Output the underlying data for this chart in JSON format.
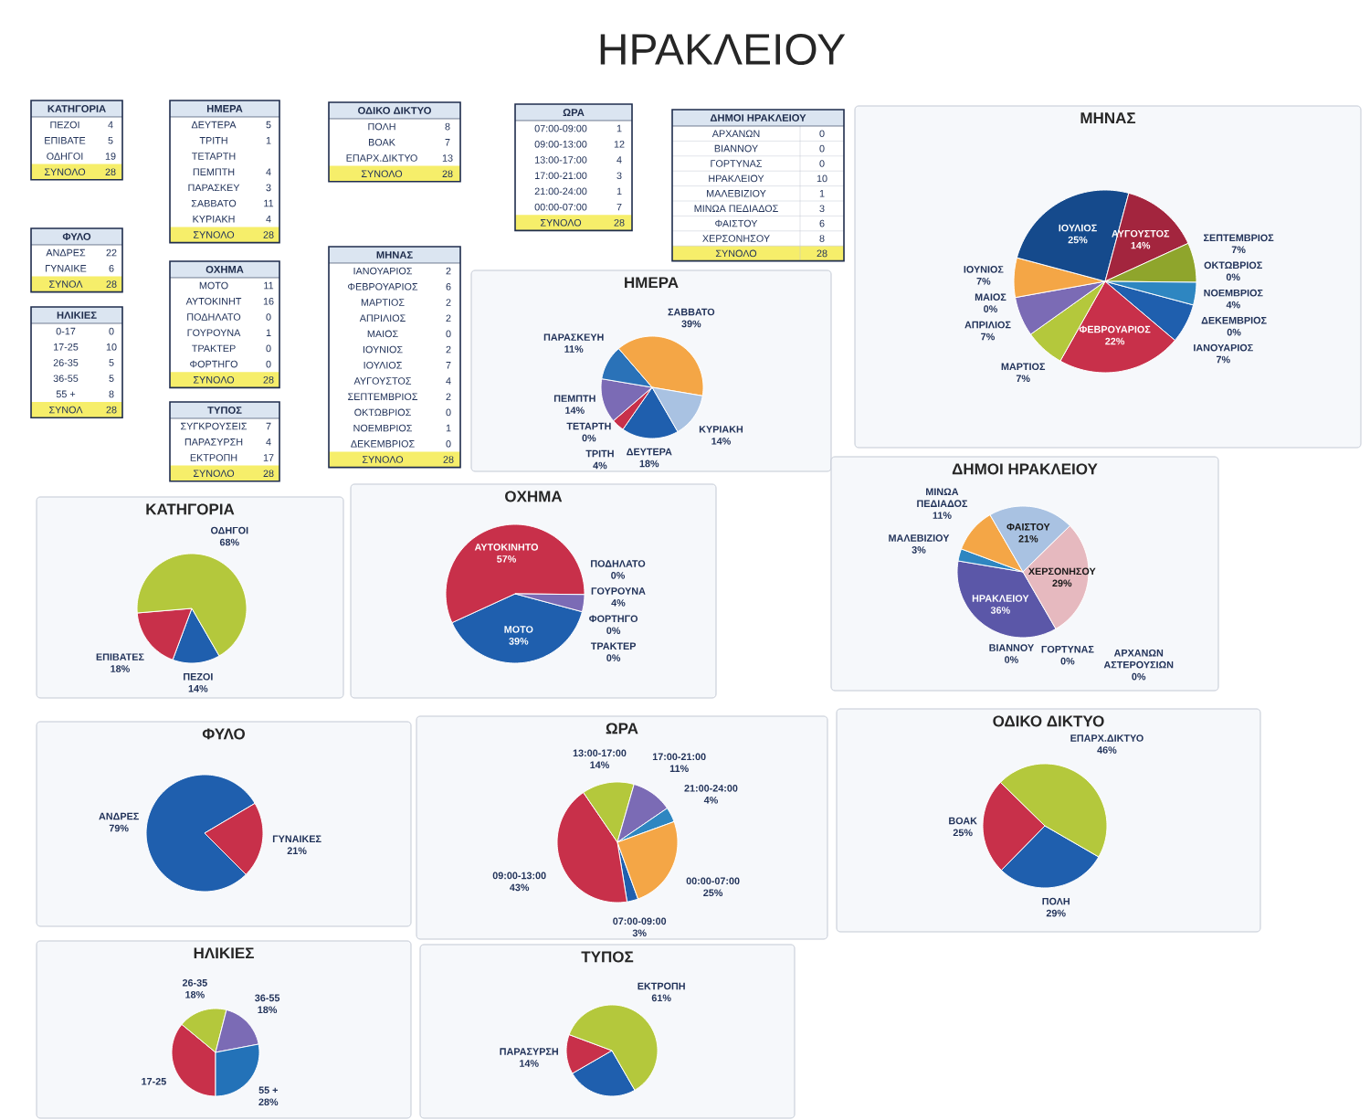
{
  "chart_data": [
    {
      "type": "other",
      "title": "ΗΡΑΚΛΕΙΟΥ"
    },
    {
      "type": "other",
      "title": "ΚΑΤΗΓΟΡΙΑ",
      "categories": [
        "ΠΕΖΟΙ",
        "ΕΠΙΒΑΤΕ",
        "ΟΔΗΓΟΙ",
        "ΣΥΝΟΛΟ"
      ],
      "values": [
        4,
        5,
        19,
        28
      ],
      "colors": [
        "#ffffff",
        "#ffffff",
        "#ffffff",
        "#f6ee6a"
      ],
      "data_labels": true
    },
    {
      "type": "other",
      "title": "ΗΜΕΡΑ",
      "categories": [
        "ΔΕΥΤΕΡΑ",
        "ΤΡΙΤΗ",
        "ΤΕΤΑΡΤΗ",
        "ΠΕΜΠΤΗ",
        "ΠΑΡΑΣΚΕΥ",
        "ΣΑΒΒΑΤΟ",
        "ΚΥΡΙΑΚΗ",
        "ΣΥΝΟΛΟ"
      ],
      "values": [
        5,
        1,
        null,
        4,
        3,
        11,
        4,
        28
      ],
      "colors": [
        "#ffffff",
        "#ffffff",
        "#ffffff",
        "#ffffff",
        "#ffffff",
        "#ffffff",
        "#ffffff",
        "#f6ee6a"
      ],
      "data_labels": true
    },
    {
      "type": "other",
      "title": "ΟΔΙΚΟ ΔΙΚΤΥΟ",
      "categories": [
        "ΠΟΛΗ",
        "ΒΟΑΚ",
        "ΕΠΑΡΧ.ΔΙΚΤΥΟ",
        "ΣΥΝΟΛΟ"
      ],
      "values": [
        8,
        7,
        13,
        28
      ],
      "colors": [
        "#ffffff",
        "#ffffff",
        "#ffffff",
        "#f6ee6a"
      ],
      "data_labels": true
    },
    {
      "type": "other",
      "title": "ΩΡΑ",
      "categories": [
        "07:00-09:00",
        "09:00-13:00",
        "13:00-17:00",
        "17:00-21:00",
        "21:00-24:00",
        "00:00-07:00",
        "ΣΥΝΟΛΟ"
      ],
      "values": [
        1,
        12,
        4,
        3,
        1,
        7,
        28
      ],
      "colors": [
        "#ffffff",
        "#ffffff",
        "#ffffff",
        "#ffffff",
        "#ffffff",
        "#ffffff",
        "#f6ee6a"
      ],
      "data_labels": true
    },
    {
      "type": "other",
      "title": "ΔΗΜΟΙ ΗΡΑΚΛΕΙΟΥ",
      "categories": [
        "ΑΡΧΑΝΩΝ",
        "ΒΙΑΝΝΟΥ",
        "ΓΟΡΤΥΝΑΣ",
        "ΗΡΑΚΛΕΙΟΥ",
        "ΜΑΛΕΒΙΖΙΟΥ",
        "ΜΙΝΩΑ ΠΕΔΙΑΔΟΣ",
        "ΦΑΙΣΤΟΥ",
        "ΧΕΡΣΟΝΗΣΟΥ",
        "ΣΥΝΟΛΟ"
      ],
      "values": [
        0,
        0,
        0,
        10,
        1,
        3,
        6,
        8,
        28
      ],
      "colors": [
        "#ffffff",
        "#ffffff",
        "#ffffff",
        "#ffffff",
        "#ffffff",
        "#ffffff",
        "#ffffff",
        "#ffffff",
        "#f6ee6a"
      ],
      "data_labels": true
    },
    {
      "type": "other",
      "title": "ΦΥΛΟ",
      "categories": [
        "ΑΝΔΡΕΣ",
        "ΓΥΝΑΙΚΕ",
        "ΣΥΝΟΛ"
      ],
      "values": [
        22,
        6,
        28
      ],
      "colors": [
        "#ffffff",
        "#ffffff",
        "#f6ee6a"
      ],
      "data_labels": true
    },
    {
      "type": "other",
      "title": "ΟΧΗΜΑ",
      "categories": [
        "ΜΟΤΟ",
        "ΑΥΤΟΚΙΝΗΤ",
        "ΠΟΔΗΛΑΤΟ",
        "ΓΟΥΡΟΥΝΑ",
        "ΤΡΑΚΤΕΡ",
        "ΦΟΡΤΗΓΟ",
        "ΣΥΝΟΛΟ"
      ],
      "values": [
        11,
        16,
        0,
        1,
        0,
        0,
        28
      ],
      "colors": [
        "#ffffff",
        "#ffffff",
        "#ffffff",
        "#ffffff",
        "#ffffff",
        "#ffffff",
        "#f6ee6a"
      ],
      "data_labels": true
    },
    {
      "type": "other",
      "title": "ΜΗΝΑΣ",
      "categories": [
        "ΙΑΝΟΥΑΡΙΟΣ",
        "ΦΕΒΡΟΥΑΡΙΟΣ",
        "ΜΑΡΤΙΟΣ",
        "ΑΠΡΙΛΙΟΣ",
        "ΜΑΙΟΣ",
        "ΙΟΥΝΙΟΣ",
        "ΙΟΥΛΙΟΣ",
        "ΑΥΓΟΥΣΤΟΣ",
        "ΣΕΠΤΕΜΒΡΙΟΣ",
        "ΟΚΤΩΒΡΙΟΣ",
        "ΝΟΕΜΒΡΙΟΣ",
        "ΔΕΚΕΜΒΡΙΟΣ",
        "ΣΥΝΟΛΟ"
      ],
      "values": [
        2,
        6,
        2,
        2,
        0,
        2,
        7,
        4,
        2,
        0,
        1,
        0,
        28
      ],
      "colors": [
        "#ffffff",
        "#ffffff",
        "#ffffff",
        "#ffffff",
        "#ffffff",
        "#ffffff",
        "#ffffff",
        "#ffffff",
        "#ffffff",
        "#ffffff",
        "#ffffff",
        "#ffffff",
        "#f6ee6a"
      ],
      "data_labels": true
    },
    {
      "type": "other",
      "title": "ΗΛΙΚΙΕΣ",
      "categories": [
        "0-17",
        "17-25",
        "26-35",
        "36-55",
        "55 +",
        "ΣΥΝΟΛ"
      ],
      "values": [
        0,
        10,
        5,
        5,
        8,
        28
      ],
      "colors": [
        "#ffffff",
        "#ffffff",
        "#ffffff",
        "#ffffff",
        "#ffffff",
        "#f6ee6a"
      ],
      "data_labels": true
    },
    {
      "type": "other",
      "title": "ΤΥΠΟΣ",
      "categories": [
        "ΣΥΓΚΡΟΥΣΕΙΣ",
        "ΠΑΡΑΣΥΡΣΗ",
        "ΕΚΤΡΟΠΗ",
        "ΣΥΝΟΛΟ"
      ],
      "values": [
        7,
        4,
        17,
        28
      ],
      "colors": [
        "#ffffff",
        "#ffffff",
        "#ffffff",
        "#f6ee6a"
      ],
      "data_labels": true
    },
    {
      "type": "pie",
      "title": "ΗΜΕΡΑ",
      "categories": [
        "ΔΕΥΤΕΡΑ",
        "ΤΡΙΤΗ",
        "ΤΕΤΑΡΤΗ",
        "ΠΕΜΠΤΗ",
        "ΠΑΡΑΣΚΕΥΗ",
        "ΣΑΒΒΑΤΟ",
        "ΚΥΡΙΑΚΗ"
      ],
      "values": [
        18,
        4,
        0,
        14,
        11,
        39,
        14
      ],
      "value_labels": [
        "18%",
        "4%",
        "0%",
        "14%",
        "11%",
        "39%",
        "14%"
      ],
      "colors": [
        "#1f5fae",
        "#c8304a",
        null,
        "#7b6bb5",
        "#2a72b8",
        "#f4a646",
        "#a9c2e2"
      ]
    },
    {
      "type": "pie",
      "title": "ΜΗΝΑΣ",
      "categories": [
        "ΙΑΝΟΥΑΡΙΟΣ",
        "ΦΕΒΡΟΥΑΡΙΟΣ",
        "ΜΑΡΤΙΟΣ",
        "ΑΠΡΙΛΙΟΣ",
        "ΜΑΙΟΣ",
        "ΙΟΥΝΙΟΣ",
        "ΙΟΥΛΙΟΣ",
        "ΑΥΓΟΥΣΤΟΣ",
        "ΣΕΠΤΕΜΒΡΙΟΣ",
        "ΟΚΤΩΒΡΙΟΣ",
        "ΝΟΕΜΒΡΙΟΣ",
        "ΔΕΚΕΜΒΡΙΟΣ"
      ],
      "values": [
        7,
        22,
        7,
        7,
        0,
        7,
        25,
        14,
        7,
        0,
        4,
        0
      ],
      "value_labels": [
        "7%",
        "22%",
        "7%",
        "7%",
        "0%",
        "7%",
        "25%",
        "14%",
        "7%",
        "0%",
        "4%",
        "0%"
      ],
      "colors": [
        "#1f5fae",
        "#c8304a",
        "#b4c83c",
        "#7b6bb5",
        null,
        "#f4a646",
        "#154a8c",
        "#a3253e",
        "#8fa52c",
        null,
        "#2e86c1",
        null
      ]
    },
    {
      "type": "pie",
      "title": "ΚΑΤΗΓΟΡΙΑ",
      "categories": [
        "ΠΕΖΟΙ",
        "ΕΠΙΒΑΤΕΣ",
        "ΟΔΗΓΟΙ"
      ],
      "values": [
        14,
        18,
        68
      ],
      "value_labels": [
        "14%",
        "18%",
        "68%"
      ],
      "colors": [
        "#1f5fae",
        "#c8304a",
        "#b4c83c"
      ]
    },
    {
      "type": "pie",
      "title": "ΟΧΗΜΑ",
      "categories": [
        "ΜΟΤΟ",
        "ΑΥΤΟΚΙΝΗΤΟ",
        "ΠΟΔΗΛΑΤΟ",
        "ΓΟΥΡΟΥΝΑ",
        "ΤΡΑΚΤΕΡ",
        "ΦΟΡΤΗΓΟ"
      ],
      "values": [
        39,
        57,
        0,
        4,
        0,
        0
      ],
      "value_labels": [
        "39%",
        "57%",
        "0%",
        "4%",
        "0%",
        "0%"
      ],
      "colors": [
        "#1f5fae",
        "#c8304a",
        null,
        "#7b6bb5",
        null,
        null
      ]
    },
    {
      "type": "pie",
      "title": "ΔΗΜΟΙ ΗΡΑΚΛΕΙΟΥ",
      "categories": [
        "ΑΡΧΑΝΩΝ ΑΣΤΕΡΟΥΣΙΩΝ",
        "ΒΙΑΝΝΟΥ",
        "ΓΟΡΤΥΝΑΣ",
        "ΗΡΑΚΛΕΙΟΥ",
        "ΜΑΛΕΒΙΖΙΟΥ",
        "ΜΙΝΩΑ ΠΕΔΙΑΔΟΣ",
        "ΦΑΙΣΤΟΥ",
        "ΧΕΡΣΟΝΗΣΟΥ"
      ],
      "values": [
        0,
        0,
        0,
        36,
        3,
        11,
        21,
        29
      ],
      "value_labels": [
        "0%",
        "0%",
        "0%",
        "36%",
        "3%",
        "11%",
        "21%",
        "29%"
      ],
      "colors": [
        null,
        null,
        null,
        "#5b57a8",
        "#2e86c1",
        "#f4a646",
        "#a9c2e2",
        "#e6b9bf"
      ]
    },
    {
      "type": "pie",
      "title": "ΦΥΛΟ",
      "categories": [
        "ΑΝΔΡΕΣ",
        "ΓΥΝΑΙΚΕΣ"
      ],
      "values": [
        79,
        21
      ],
      "value_labels": [
        "79%",
        "21%"
      ],
      "colors": [
        "#1f5fae",
        "#c8304a"
      ]
    },
    {
      "type": "pie",
      "title": "ΩΡΑ",
      "categories": [
        "07:00-09:00",
        "09:00-13:00",
        "13:00-17:00",
        "17:00-21:00",
        "21:00-24:00",
        "00:00-07:00"
      ],
      "values": [
        3,
        43,
        14,
        11,
        4,
        25
      ],
      "value_labels": [
        "3%",
        "43%",
        "14%",
        "11%",
        "4%",
        "25%"
      ],
      "colors": [
        "#1f5fae",
        "#c8304a",
        "#b4c83c",
        "#7b6bb5",
        "#2e86c1",
        "#f4a646"
      ]
    },
    {
      "type": "pie",
      "title": "ΟΔΙΚΟ ΔΙΚΤΥΟ",
      "categories": [
        "ΠΟΛΗ",
        "ΒΟΑΚ",
        "ΕΠΑΡΧ.ΔΙΚΤΥΟ"
      ],
      "values": [
        29,
        25,
        46
      ],
      "value_labels": [
        "29%",
        "25%",
        "46%"
      ],
      "colors": [
        "#1f5fae",
        "#c8304a",
        "#b4c83c"
      ]
    },
    {
      "type": "pie",
      "title": "ΗΛΙΚΙΕΣ",
      "categories": [
        "17-25",
        "26-35",
        "36-55",
        "55 +"
      ],
      "values": [
        36,
        18,
        18,
        28
      ],
      "value_labels": [
        null,
        "18%",
        "18%",
        "28%"
      ],
      "colors": [
        "#c8304a",
        "#b4c83c",
        "#7b6bb5",
        "#2372b8"
      ]
    },
    {
      "type": "pie",
      "title": "ΤΥΠΟΣ",
      "categories": [
        null,
        "ΠΑΡΑΣΥΡΣΗ",
        "ΕΚΤΡΟΠΗ"
      ],
      "values": [
        25,
        14,
        61
      ],
      "value_labels": [
        null,
        "14%",
        "61%"
      ],
      "colors": [
        "#1f5fae",
        "#c8304a",
        "#b4c83c"
      ]
    }
  ]
}
